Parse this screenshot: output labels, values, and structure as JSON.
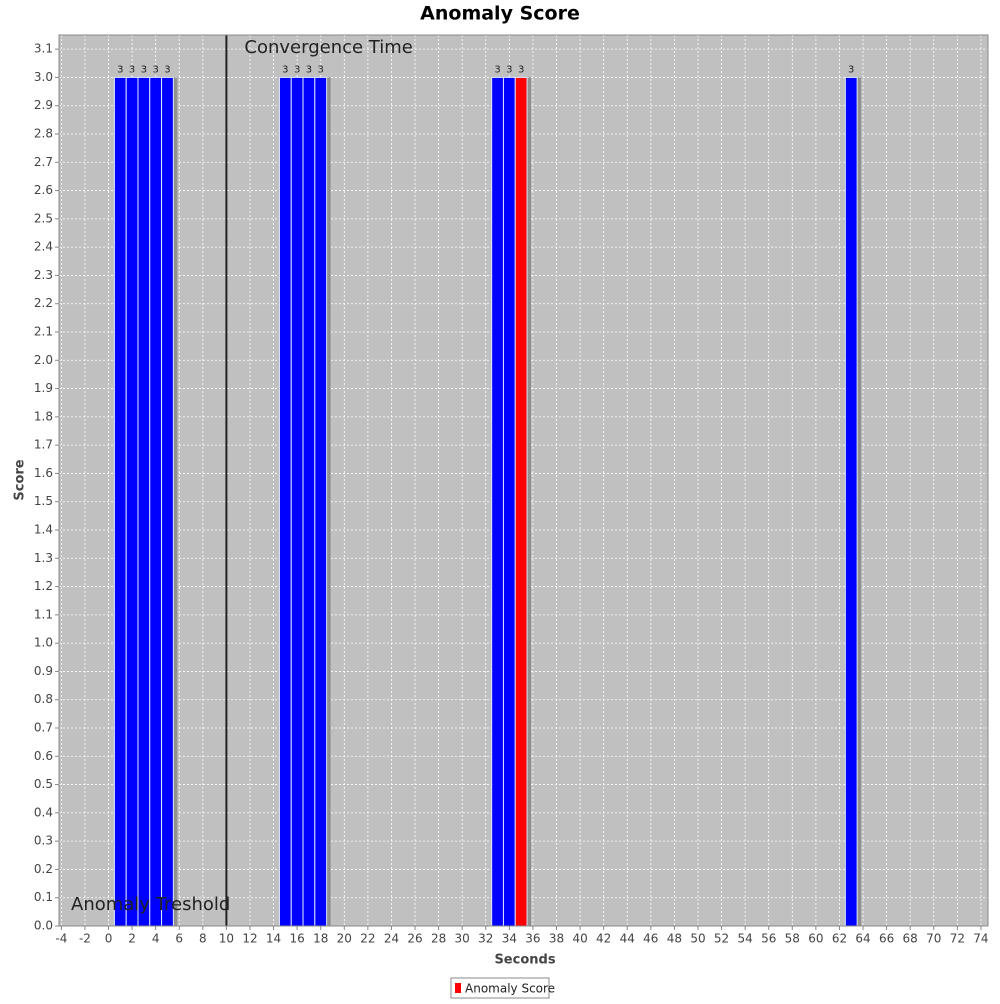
{
  "chart_data": {
    "type": "bar",
    "title": "Anomaly Score",
    "x_label": "Seconds",
    "y_label": "Score",
    "series": [
      {
        "name": "Anomaly Score",
        "color": "#ff0000",
        "x": [
          1,
          2,
          3,
          4,
          5,
          15,
          16,
          17,
          18,
          33,
          34,
          35,
          63
        ],
        "values": [
          3,
          3,
          3,
          3,
          3,
          3,
          3,
          3,
          3,
          3,
          3,
          3,
          3
        ],
        "bar_colors": [
          "#0000ff",
          "#0000ff",
          "#0000ff",
          "#0000ff",
          "#0000ff",
          "#0000ff",
          "#0000ff",
          "#0000ff",
          "#0000ff",
          "#0000ff",
          "#0000ff",
          "#ff0000",
          "#0000ff"
        ]
      }
    ],
    "annotations": [
      {
        "text": "Convergence Time",
        "x": 10
      },
      {
        "text": "Anomaly Treshold",
        "y": 0
      }
    ],
    "xlim": [
      -4.2,
      74.6
    ],
    "ylim": [
      0,
      3.15
    ],
    "xticks": [
      -4,
      -2,
      0,
      2,
      4,
      6,
      8,
      10,
      12,
      14,
      16,
      18,
      20,
      22,
      24,
      26,
      28,
      30,
      32,
      34,
      36,
      38,
      40,
      42,
      44,
      46,
      48,
      50,
      52,
      54,
      56,
      58,
      60,
      62,
      64,
      66,
      68,
      70,
      72,
      74
    ],
    "yticks": [
      {
        "value": 0,
        "label": "0.0"
      },
      0.1,
      0.2,
      0.3,
      0.4,
      0.5,
      0.6,
      0.7,
      0.8,
      0.9,
      {
        "value": 1,
        "label": "1.0"
      },
      1.1,
      1.2,
      1.3,
      1.4,
      1.5,
      1.6,
      1.7,
      1.8,
      1.9,
      {
        "value": 2,
        "label": "2.0"
      },
      2.1,
      2.2,
      2.3,
      2.4,
      2.5,
      2.6,
      2.7,
      2.8,
      2.9,
      {
        "value": 3,
        "label": "3.0"
      },
      3.1
    ],
    "grid": true,
    "legend": "bottom"
  }
}
